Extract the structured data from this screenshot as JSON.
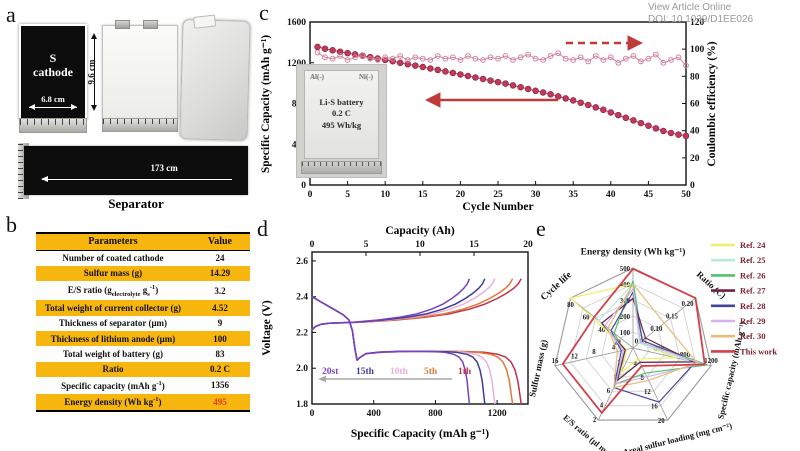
{
  "panels": {
    "a": "a",
    "b": "b",
    "c": "c",
    "d": "d",
    "e": "e"
  },
  "watermark": {
    "line1": "View Article Online",
    "line2": "DOI: 10.1039/D1EE026"
  },
  "panel_a": {
    "cathode_line1": "S",
    "cathode_line2": "cathode",
    "width_dim": "6.8 cm",
    "height_dim": "9.6 cm",
    "separator_length": "173 cm",
    "separator_caption": "Separator"
  },
  "panel_b": {
    "header": [
      "Parameters",
      "Value"
    ],
    "rows": [
      {
        "param": "Number of coated cathode",
        "value": "24",
        "bg": "white",
        "red": false
      },
      {
        "param": "Sulfur mass (g)",
        "value": "14.29",
        "bg": "gold",
        "red": false
      },
      {
        "param": "E/S ratio (g<sub>electrolyte</sub> g<sub>s</sub><sup>-1</sup>)",
        "value": "3.2",
        "bg": "white",
        "red": false
      },
      {
        "param": "Total weight of current collector (g)",
        "value": "4.52",
        "bg": "gold",
        "red": false
      },
      {
        "param": "Thickness of separator (μm)",
        "value": "9",
        "bg": "white",
        "red": false
      },
      {
        "param": "Thickness of lithium anode (μm)",
        "value": "100",
        "bg": "gold",
        "red": false
      },
      {
        "param": "Total weight of battery (g)",
        "value": "83",
        "bg": "white",
        "red": false
      },
      {
        "param": "Ratio",
        "value": "0.2 C",
        "bg": "gold",
        "red": false
      },
      {
        "param": "Specific capacity (mAh g<sup>-1</sup>)",
        "value": "1356",
        "bg": "white",
        "red": false
      },
      {
        "param": "Energy density (Wh kg<sup>-1</sup>)",
        "value": "495",
        "bg": "gold",
        "red": true
      }
    ]
  },
  "chart_data": [
    {
      "id": "cycling_performance",
      "type": "line",
      "xlabel": "Cycle Number",
      "ylabel_left": "Specific Capacity (mAh g⁻¹)",
      "ylabel_right": "Coulombic efficiency (%)",
      "xlim": [
        0,
        50
      ],
      "xticks": [
        0,
        5,
        10,
        15,
        20,
        25,
        30,
        35,
        40,
        45,
        50
      ],
      "ylim_left": [
        0,
        1600
      ],
      "yticks_left": [
        0,
        400,
        800,
        1200,
        1600
      ],
      "ylim_right": [
        0,
        120
      ],
      "yticks_right": [
        0,
        20,
        40,
        60,
        80,
        100,
        120
      ],
      "series": [
        {
          "name": "Specific capacity",
          "axis": "left",
          "marker": "filled",
          "color": "#c23a5a",
          "edge": "#8d2440",
          "cycles": [
            1,
            2,
            3,
            4,
            5,
            6,
            7,
            8,
            9,
            10,
            11,
            12,
            13,
            14,
            15,
            16,
            17,
            18,
            19,
            20,
            21,
            22,
            23,
            24,
            25,
            26,
            27,
            28,
            29,
            30,
            31,
            32,
            33,
            34,
            35,
            36,
            37,
            38,
            39,
            40,
            41,
            42,
            43,
            44,
            45,
            46,
            47,
            48,
            49,
            50
          ],
          "values": [
            1356,
            1338,
            1322,
            1308,
            1295,
            1282,
            1268,
            1255,
            1242,
            1228,
            1215,
            1200,
            1186,
            1172,
            1158,
            1144,
            1130,
            1115,
            1100,
            1085,
            1070,
            1055,
            1040,
            1025,
            1010,
            995,
            978,
            960,
            942,
            925,
            908,
            890,
            870,
            850,
            830,
            808,
            785,
            762,
            738,
            712,
            686,
            660,
            634,
            608,
            582,
            556,
            530,
            510,
            495,
            482
          ]
        },
        {
          "name": "Coulombic efficiency",
          "axis": "right",
          "marker": "open",
          "color": "#d4849b",
          "edge": "#c06b84",
          "cycles": [
            1,
            2,
            3,
            4,
            5,
            6,
            7,
            8,
            9,
            10,
            11,
            12,
            13,
            14,
            15,
            16,
            17,
            18,
            19,
            20,
            21,
            22,
            23,
            24,
            25,
            26,
            27,
            28,
            29,
            30,
            31,
            32,
            33,
            34,
            35,
            36,
            37,
            38,
            39,
            40,
            41,
            42,
            43,
            44,
            45,
            46,
            47,
            48,
            49,
            50
          ],
          "values": [
            97.5,
            94,
            93,
            95,
            92,
            94,
            95,
            93,
            92,
            94,
            93,
            95,
            92,
            94,
            93,
            92,
            95,
            93,
            94,
            92,
            95,
            93,
            92,
            94,
            93,
            95,
            92,
            94,
            96,
            93,
            92,
            95,
            97,
            93,
            92,
            94,
            91,
            95,
            92,
            94,
            90,
            93,
            95,
            91,
            93,
            96,
            90,
            92,
            94,
            88
          ]
        }
      ],
      "arrow_color": "#c13a3a",
      "inset": {
        "tab_left": "Al(-)",
        "tab_right": "Ni(-)",
        "lines": [
          "Li-S battery",
          "0.2 C",
          "495 Wh/kg"
        ]
      }
    },
    {
      "id": "voltage_profiles",
      "type": "line",
      "xlabel_top": "Capacity (Ah)",
      "xlabel_bottom": "Specific Capacity (mAh g⁻¹)",
      "ylabel": "Voltage (V)",
      "xlim": [
        0,
        1400
      ],
      "xticks_bottom": [
        0,
        400,
        800,
        1200
      ],
      "xlim_top": [
        0,
        20
      ],
      "xticks_top": [
        0,
        5,
        10,
        15,
        20
      ],
      "ylim": [
        1.8,
        2.65
      ],
      "yticks": [
        1.8,
        2.0,
        2.2,
        2.4,
        2.6
      ],
      "series": [
        {
          "name": "1th",
          "color": "#c23048",
          "end_capacity": 1356
        },
        {
          "name": "5th",
          "color": "#e07838",
          "end_capacity": 1300
        },
        {
          "name": "10th",
          "color": "#eab0dc",
          "end_capacity": 1185
        },
        {
          "name": "15th",
          "color": "#3c3c96",
          "end_capacity": 1120
        },
        {
          "name": "20st",
          "color": "#7742bc",
          "end_capacity": 1020
        }
      ],
      "legend_order": [
        "20st",
        "15th",
        "10th",
        "5th",
        "1th"
      ]
    },
    {
      "id": "radar_comparison",
      "type": "radar",
      "axes": [
        {
          "label": "Energy density (Wh kg⁻¹)",
          "ticks": [
            "100",
            "200",
            "300",
            "400",
            "500"
          ]
        },
        {
          "label": "Ratio (C)",
          "ticks": [
            "0.05",
            "0.10",
            "0.15",
            "0.20"
          ]
        },
        {
          "label": "Specific capacity (mAh g⁻¹)",
          "ticks": [
            "400",
            "800",
            "1200"
          ]
        },
        {
          "label": "Areal sulfur loading (mg cm⁻²)",
          "ticks": [
            "4",
            "8",
            "12",
            "16",
            "20"
          ]
        },
        {
          "label": "E/S ratio (μl mg⁻¹)",
          "ticks": [
            "10",
            "8",
            "6",
            "4",
            "2"
          ]
        },
        {
          "label": "Sulfur mass (g)",
          "ticks": [
            "4",
            "8",
            "12",
            "16"
          ]
        },
        {
          "label": "Cycle life",
          "ticks": [
            "20",
            "40",
            "60",
            "80"
          ]
        }
      ],
      "series": [
        {
          "name": "Ref. 24",
          "color": "#f0ee68",
          "values": [
            0.8,
            0.1,
            0.55,
            0.15,
            0.35,
            0.08,
            1.0
          ]
        },
        {
          "name": "Ref. 25",
          "color": "#b6ecd8",
          "values": [
            0.8,
            0.1,
            0.72,
            0.2,
            0.4,
            0.1,
            0.55
          ]
        },
        {
          "name": "Ref. 26",
          "color": "#53c06e",
          "values": [
            0.84,
            0.15,
            0.95,
            0.35,
            0.5,
            0.12,
            0.3
          ]
        },
        {
          "name": "Ref. 27",
          "color": "#722046",
          "values": [
            0.62,
            0.2,
            0.78,
            0.2,
            0.45,
            0.1,
            0.5
          ]
        },
        {
          "name": "Ref. 28",
          "color": "#45459e",
          "values": [
            0.7,
            0.15,
            0.8,
            0.75,
            0.55,
            0.15,
            0.35
          ]
        },
        {
          "name": "Ref. 29",
          "color": "#d7b3ea",
          "values": [
            0.74,
            0.12,
            0.88,
            0.4,
            0.5,
            0.12,
            0.45
          ]
        },
        {
          "name": "Ref. 30",
          "color": "#e4bd7a",
          "values": [
            0.8,
            0.5,
            0.82,
            0.45,
            0.55,
            0.2,
            0.4
          ]
        },
        {
          "name": "This work",
          "color": "#d0414a",
          "values": [
            0.99,
            1.0,
            0.92,
            0.25,
            0.9,
            0.9,
            0.62
          ]
        }
      ],
      "legend_text_color": "#7a1f2d"
    }
  ]
}
